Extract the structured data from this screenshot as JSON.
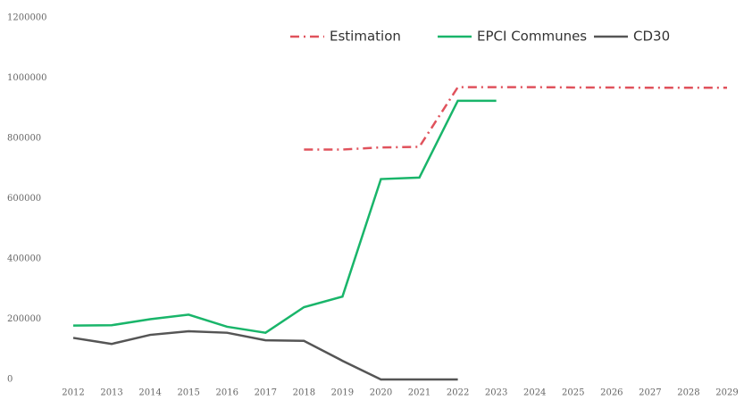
{
  "chart_data": {
    "type": "line",
    "categories": [
      "2012",
      "2013",
      "2014",
      "2015",
      "2016",
      "2017",
      "2018",
      "2019",
      "2020",
      "2021",
      "2022",
      "2023",
      "2024",
      "2025",
      "2026",
      "2027",
      "2028",
      "2029"
    ],
    "series": [
      {
        "name": "Estimation",
        "color": "#e0525c",
        "dash": "dashdot",
        "values": [
          null,
          null,
          null,
          null,
          null,
          null,
          763000,
          763000,
          770000,
          772000,
          970000,
          970000,
          970000,
          969000,
          969000,
          968000,
          968000,
          968000
        ]
      },
      {
        "name": "EPCI Communes",
        "color": "#19b56a",
        "dash": "solid",
        "values": [
          179000,
          180000,
          200000,
          215000,
          175000,
          155000,
          240000,
          275000,
          665000,
          670000,
          925000,
          925000,
          null,
          null,
          null,
          null,
          null,
          null
        ]
      },
      {
        "name": "CD30",
        "color": "#555555",
        "dash": "solid",
        "values": [
          138000,
          118000,
          148000,
          160000,
          155000,
          130000,
          128000,
          62000,
          0,
          0,
          0,
          null,
          null,
          null,
          null,
          null,
          null,
          null
        ]
      }
    ],
    "ylim": [
      0,
      1200000
    ],
    "yticks": [
      0,
      200000,
      400000,
      600000,
      800000,
      1000000,
      1200000
    ],
    "grid": false,
    "legend": "top-right"
  }
}
